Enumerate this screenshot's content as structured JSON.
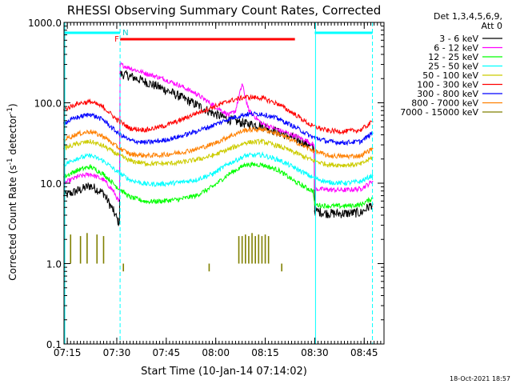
{
  "chart_data": {
    "type": "line",
    "title": "RHESSI Observing Summary Count Rates, Corrected",
    "xlabel": "Start Time (10-Jan-14 07:14:02)",
    "ylabel": "Corrected Count Rate (s⁻¹ detector⁻¹)",
    "ylabel_main": "Corrected Count Rate (s",
    "ylabel_sup1": "-1",
    "ylabel_mid": " detector",
    "ylabel_sup2": "-1",
    "ylabel_end": ")",
    "y_scale": "log",
    "ylim": [
      0.1,
      1000
    ],
    "xlim_minutes": [
      0,
      97
    ],
    "x_ticks": [
      {
        "label": "07:15",
        "min": 1
      },
      {
        "label": "07:30",
        "min": 16
      },
      {
        "label": "07:45",
        "min": 31
      },
      {
        "label": "08:00",
        "min": 46
      },
      {
        "label": "08:15",
        "min": 61
      },
      {
        "label": "08:30",
        "min": 76
      },
      {
        "label": "08:45",
        "min": 91
      }
    ],
    "y_ticks": [
      {
        "label": "0.1",
        "value": 0.1
      },
      {
        "label": "1.0",
        "value": 1
      },
      {
        "label": "10.0",
        "value": 10
      },
      {
        "label": "100.0",
        "value": 100
      },
      {
        "label": "1000.0",
        "value": 1000
      }
    ],
    "legend": {
      "placement": "right",
      "header1": "Det 1,3,4,5,6,9,",
      "header2": "Att 0"
    },
    "series": [
      {
        "name": "3 - 6 keV",
        "color": "#000000",
        "x": [
          0,
          4,
          8,
          12,
          15,
          16.5,
          17,
          20,
          25,
          30,
          35,
          40,
          45,
          50,
          55,
          60,
          65,
          70,
          74,
          75.5,
          76,
          80,
          85,
          90,
          93.5
        ],
        "y": [
          7,
          8,
          9.3,
          7.5,
          4.5,
          3.3,
          230,
          215,
          180,
          150,
          120,
          95,
          75,
          62,
          55,
          52,
          43,
          36,
          30,
          27,
          4.5,
          4.2,
          4.2,
          4.3,
          5.5
        ]
      },
      {
        "name": "6 - 12 keV",
        "color": "#ff00ff",
        "x": [
          0,
          4,
          8,
          12,
          15,
          16.5,
          17,
          20,
          25,
          30,
          35,
          40,
          45,
          50,
          52,
          54,
          56,
          60,
          65,
          70,
          74,
          75.5,
          76,
          80,
          85,
          90,
          93.5
        ],
        "y": [
          10,
          12,
          13,
          11,
          8,
          6,
          300,
          270,
          230,
          200,
          165,
          130,
          95,
          70,
          80,
          170,
          80,
          55,
          46,
          39,
          33,
          30,
          8.5,
          8.3,
          8.2,
          8.5,
          10.5
        ]
      },
      {
        "name": "12 - 25 keV",
        "color": "#00ff00",
        "x": [
          0,
          4,
          8,
          12,
          16,
          20,
          25,
          30,
          35,
          40,
          45,
          50,
          55,
          60,
          65,
          70,
          74,
          75.5,
          76,
          80,
          85,
          90,
          93.5
        ],
        "y": [
          12,
          14.5,
          16,
          13,
          9,
          6.7,
          5.9,
          6,
          6.3,
          7,
          9,
          13,
          17,
          17,
          14.5,
          10.5,
          8.5,
          8,
          5.4,
          5.2,
          5.2,
          5.4,
          6.5
        ]
      },
      {
        "name": "25 - 50 keV",
        "color": "#00ffff",
        "x": [
          0,
          4,
          8,
          12,
          16,
          20,
          25,
          30,
          35,
          40,
          45,
          50,
          55,
          60,
          65,
          70,
          75,
          80,
          85,
          90,
          93.5
        ],
        "y": [
          17,
          20.5,
          22,
          19,
          14,
          11,
          9.7,
          9.8,
          10.2,
          11,
          13,
          17.5,
          22,
          22.5,
          19.5,
          15.5,
          12,
          10.3,
          10,
          10.5,
          12.5
        ]
      },
      {
        "name": "50 - 100 keV",
        "color": "#cccc00",
        "x": [
          0,
          4,
          8,
          12,
          16,
          20,
          25,
          30,
          35,
          40,
          45,
          50,
          55,
          60,
          65,
          70,
          75,
          80,
          85,
          90,
          93.5
        ],
        "y": [
          27,
          31,
          33,
          29,
          23,
          19,
          17.5,
          17.5,
          18,
          19.5,
          22,
          26.5,
          32,
          33,
          29,
          24,
          19.5,
          17,
          16.8,
          17.2,
          21
        ]
      },
      {
        "name": "100 - 300 keV",
        "color": "#ff0000",
        "x": [
          0,
          4,
          8,
          12,
          16,
          20,
          25,
          30,
          35,
          40,
          45,
          50,
          55,
          60,
          65,
          70,
          75,
          80,
          85,
          90,
          93.5
        ],
        "y": [
          82,
          98,
          103,
          88,
          62,
          48,
          46,
          51,
          60,
          74,
          88,
          105,
          118,
          115,
          96,
          72,
          52,
          45,
          44,
          46,
          58
        ]
      },
      {
        "name": "300 - 800 keV",
        "color": "#0000ff",
        "x": [
          0,
          4,
          8,
          12,
          16,
          20,
          25,
          30,
          35,
          40,
          45,
          50,
          55,
          60,
          65,
          70,
          75,
          80,
          85,
          90,
          93.5
        ],
        "y": [
          56,
          66,
          72,
          61,
          43,
          34,
          32,
          34,
          38,
          44,
          52,
          63,
          72,
          73,
          63,
          50,
          38,
          33,
          32,
          33,
          42
        ]
      },
      {
        "name": "800 - 7000 keV",
        "color": "#ff8000",
        "x": [
          0,
          4,
          8,
          12,
          16,
          20,
          25,
          30,
          35,
          40,
          45,
          50,
          55,
          60,
          65,
          70,
          75,
          80,
          85,
          90,
          93.5
        ],
        "y": [
          35,
          41,
          44,
          38,
          28.5,
          23,
          22,
          22.5,
          24,
          26.5,
          30.5,
          38,
          46,
          47,
          41,
          33,
          26,
          22,
          21.5,
          22,
          27
        ]
      },
      {
        "name": "7000 - 15000 keV",
        "color": "#808000",
        "style": "spikes",
        "baseline": 1.0,
        "spikes": [
          [
            2,
            2.3
          ],
          [
            5,
            2.2
          ],
          [
            7,
            2.4
          ],
          [
            10,
            2.3
          ],
          [
            12,
            2.2
          ],
          [
            18,
            0.8
          ],
          [
            44,
            0.8
          ],
          [
            53,
            2.2
          ],
          [
            54,
            2.2
          ],
          [
            55,
            2.3
          ],
          [
            56,
            2.2
          ],
          [
            57,
            2.4
          ],
          [
            58,
            2.2
          ],
          [
            59,
            2.3
          ],
          [
            60,
            2.2
          ],
          [
            61,
            2.3
          ],
          [
            62,
            2.2
          ],
          [
            66,
            0.8
          ]
        ]
      }
    ],
    "state_bars": {
      "night": [
        [
          0,
          17
        ],
        [
          76,
          93.5
        ]
      ],
      "flare": [
        [
          17,
          70
        ]
      ],
      "flare_marker": "F",
      "saa_marker": "N"
    },
    "attenuator_changes": [
      16.5,
      76
    ]
  },
  "footer_date": "18-Oct-2021 18:57"
}
